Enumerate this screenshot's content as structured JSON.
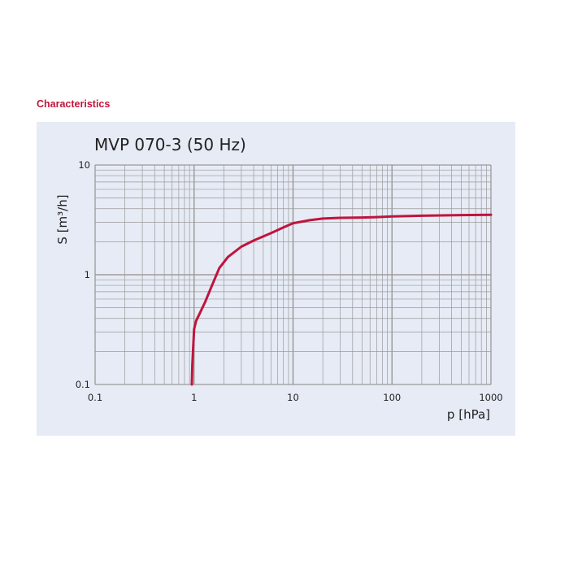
{
  "header": {
    "section_title": "Characteristics"
  },
  "colors": {
    "accent": "#c0143c",
    "panel_bg": "#e6ebf5",
    "grid": "#9a9a9a",
    "curve": "#c0143c"
  },
  "chart_data": {
    "type": "line",
    "title": "MVP 070-3 (50 Hz)",
    "xlabel": "p  [hPa]",
    "ylabel": "S  [m³/h]",
    "xscale": "log",
    "yscale": "log",
    "xlim": [
      0.1,
      1000
    ],
    "ylim": [
      0.1,
      10
    ],
    "xticks": [
      "0.1",
      "1",
      "10",
      "100",
      "1000"
    ],
    "yticks": [
      "0.1",
      "1",
      "10"
    ],
    "grid": true,
    "series": [
      {
        "x": [
          0.95,
          0.96,
          0.98,
          1.0,
          1.05,
          1.15,
          1.3,
          1.5,
          1.8,
          2.2,
          3.0,
          4.0,
          6.0,
          8.0,
          10,
          15,
          20,
          30,
          50,
          70,
          100,
          200,
          500,
          1000
        ],
        "y": [
          0.1,
          0.15,
          0.22,
          0.32,
          0.38,
          0.45,
          0.57,
          0.78,
          1.15,
          1.45,
          1.8,
          2.05,
          2.4,
          2.7,
          2.95,
          3.15,
          3.25,
          3.3,
          3.32,
          3.35,
          3.4,
          3.45,
          3.5,
          3.52
        ]
      }
    ]
  }
}
